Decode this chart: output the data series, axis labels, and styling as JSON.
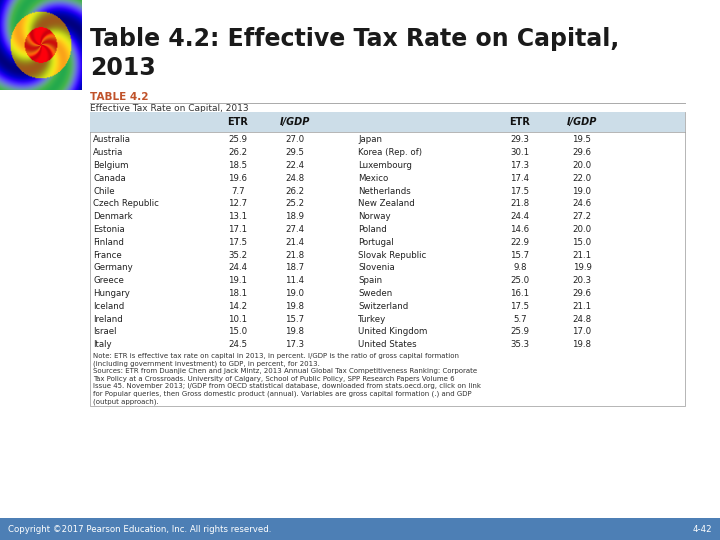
{
  "title": "Table 4.2: Effective Tax Rate on Capital,\n2013",
  "table_label": "TABLE 4.2",
  "table_subtitle": "Effective Tax Rate on Capital, 2013",
  "left_data": [
    [
      "Australia",
      "25.9",
      "27.0"
    ],
    [
      "Austria",
      "26.2",
      "29.5"
    ],
    [
      "Belgium",
      "18.5",
      "22.4"
    ],
    [
      "Canada",
      "19.6",
      "24.8"
    ],
    [
      "Chile",
      "7.7",
      "26.2"
    ],
    [
      "Czech Republic",
      "12.7",
      "25.2"
    ],
    [
      "Denmark",
      "13.1",
      "18.9"
    ],
    [
      "Estonia",
      "17.1",
      "27.4"
    ],
    [
      "Finland",
      "17.5",
      "21.4"
    ],
    [
      "France",
      "35.2",
      "21.8"
    ],
    [
      "Germany",
      "24.4",
      "18.7"
    ],
    [
      "Greece",
      "19.1",
      "11.4"
    ],
    [
      "Hungary",
      "18.1",
      "19.0"
    ],
    [
      "Iceland",
      "14.2",
      "19.8"
    ],
    [
      "Ireland",
      "10.1",
      "15.7"
    ],
    [
      "Israel",
      "15.0",
      "19.8"
    ],
    [
      "Italy",
      "24.5",
      "17.3"
    ]
  ],
  "right_data": [
    [
      "Japan",
      "29.3",
      "19.5"
    ],
    [
      "Korea (Rep. of)",
      "30.1",
      "29.6"
    ],
    [
      "Luxembourg",
      "17.3",
      "20.0"
    ],
    [
      "Mexico",
      "17.4",
      "22.0"
    ],
    [
      "Netherlands",
      "17.5",
      "19.0"
    ],
    [
      "New Zealand",
      "21.8",
      "24.6"
    ],
    [
      "Norway",
      "24.4",
      "27.2"
    ],
    [
      "Poland",
      "14.6",
      "20.0"
    ],
    [
      "Portugal",
      "22.9",
      "15.0"
    ],
    [
      "Slovak Republic",
      "15.7",
      "21.1"
    ],
    [
      "Slovenia",
      "9.8",
      "19.9"
    ],
    [
      "Spain",
      "25.0",
      "20.3"
    ],
    [
      "Sweden",
      "16.1",
      "29.6"
    ],
    [
      "Switzerland",
      "17.5",
      "21.1"
    ],
    [
      "Turkey",
      "5.7",
      "24.8"
    ],
    [
      "United Kingdom",
      "25.9",
      "17.0"
    ],
    [
      "United States",
      "35.3",
      "19.8"
    ]
  ],
  "note_line1": "Note: ETR is effective tax rate on capital in 2013, in percent. I/GDP is the ratio of gross capital formation",
  "note_line2": "(including government investment) to GDP, in percent, for 2013.",
  "note_line3": "Sources: ETR from Duanjie Chen and Jack Mintz, 2013 Annual Global Tax Competitiveness Ranking: Corporate",
  "note_line4": "Tax Policy at a Crossroads. University of Calgary, School of Public Policy, SPP Research Papers Volume 6",
  "note_line5": "Issue 45. November 2013; I/GDP from OECD statistical database, downloaded from stats.oecd.org, click on link",
  "note_line6": "for Popular queries, then Gross domestic product (annual). Variables are gross capital formation (.) and GDP",
  "note_line7": "(output approach).",
  "footer_left": "Copyright ©2017 Pearson Education, Inc. All rights reserved.",
  "footer_right": "4-42",
  "header_bg": "#ccdde8",
  "table_label_color": "#c0522a",
  "footer_bg": "#4d7fb5"
}
